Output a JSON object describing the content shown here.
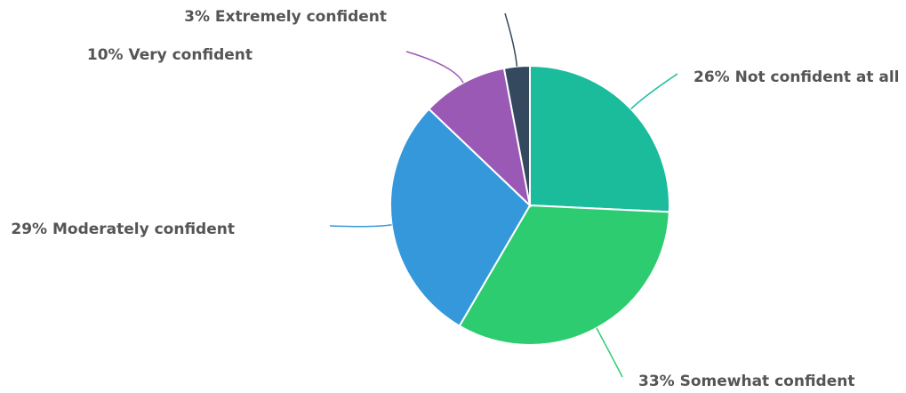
{
  "chart_data": {
    "type": "pie",
    "title": "",
    "start_angle_deg": 0,
    "direction": "clockwise",
    "slices": [
      {
        "label": "Not confident at all",
        "value": 26,
        "display": "26% Not confident at all",
        "color": "#1abc9c"
      },
      {
        "label": "Somewhat confident",
        "value": 33,
        "display": "33% Somewhat confident",
        "color": "#2ecc71"
      },
      {
        "label": "Moderately confident",
        "value": 29,
        "display": "29% Moderately confident",
        "color": "#3498db"
      },
      {
        "label": "Very confident",
        "value": 10,
        "display": "10% Very confident",
        "color": "#9b59b6"
      },
      {
        "label": "Extremely confident",
        "value": 3,
        "display": "3% Extremely confident",
        "color": "#34495e"
      }
    ]
  }
}
